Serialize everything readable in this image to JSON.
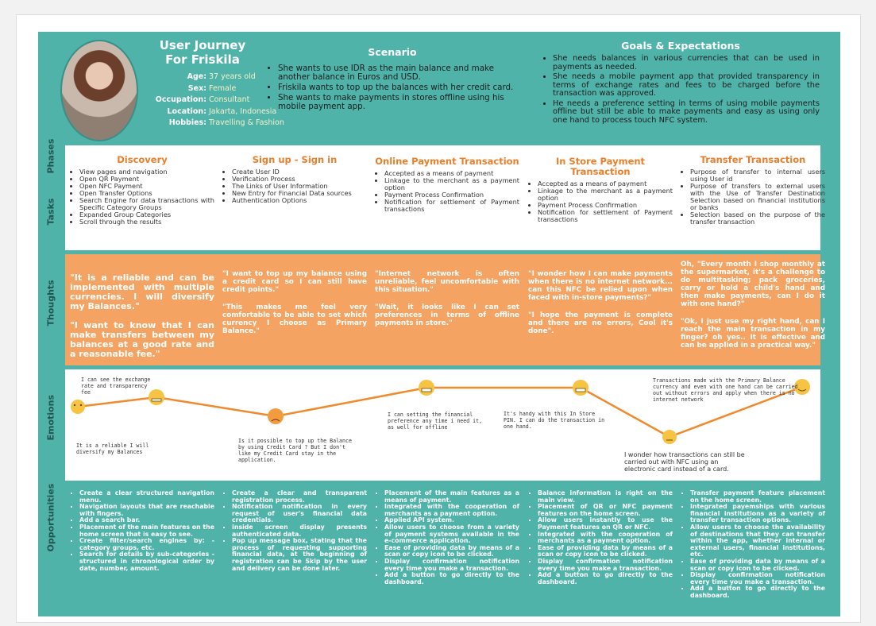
{
  "profile": {
    "title": [
      "User Journey",
      "For Friskila"
    ],
    "fields": [
      {
        "label": "Age:",
        "value": "37 years old"
      },
      {
        "label": "Sex:",
        "value": "Female"
      },
      {
        "label": "Occupation:",
        "value": "Consultant"
      },
      {
        "label": "Location:",
        "value": "Jakarta, Indonesia"
      },
      {
        "label": "Hobbies:",
        "value": "Travelling & Fashion"
      }
    ]
  },
  "scenario": {
    "title": "Scenario",
    "items": [
      "She wants to use IDR as the main balance and make another balance in Euros and USD.",
      "Friskila wants to top up the balances with her credit card.",
      "She wants to make payments in stores offline using his mobile payment app."
    ]
  },
  "goals": {
    "title": "Goals & Expectations",
    "items": [
      "She needs balances in various currencies that can be used in payments as needed.",
      "She needs a mobile payment app that provided transparency in terms of exchange rates and fees to be charged before the transaction was approved.",
      "He needs a preference setting in terms of using mobile payments offline but still be able to make payments and easy as using only one hand to process touch NFC system."
    ]
  },
  "row_labels": [
    "Phases",
    "Tasks",
    "Thoughts",
    "Emotions",
    "Opportunities"
  ],
  "stages": [
    {
      "phase": "Discovery",
      "tasks": [
        "View pages and navigation",
        "Open QR Payment",
        "Open NFC Payment",
        "Open Transfer Options",
        "Search Engine for data transactions with Specific Category Groups",
        "Expanded Group Categories",
        "Scroll through the results"
      ],
      "thoughts": [
        "\"It is a reliable and can be implemented with multiple currencies. I will diversify my Balances.\"",
        "\"I want to know that I can make transfers between my balances at a good rate and a reasonable fee.\""
      ],
      "opportunities": [
        "Create a clear structured navigation menu.",
        "Navigation layouts that are reachable with fingers.",
        "Add a search bar.",
        "Placement of the main features on the home screen that is easy to see.",
        "Create filter/search engines by: - category groups, etc.",
        "Search for details by sub-categories - structured in chronological order by date, number, amount."
      ]
    },
    {
      "phase": "Sign up - Sign in",
      "tasks": [
        "Create User ID",
        "Verification Process",
        "The Links of User Information",
        "New Entry for Financial Data sources",
        "Authentication Options"
      ],
      "thoughts": [
        "\"I want to top up my balance using a credit card so I can still have credit points.\"",
        "\"This makes me feel very comfortable to be able to set which currency I choose as Primary Balance.\""
      ],
      "opportunities": [
        "Create a clear and transparent registration process.",
        "Notification notification in every request of user's financial data credentials.",
        "Inside screen display presents authenticated data.",
        "Pop up message box, stating that the process of requesting supporting financial data, at the beginning of registration can be Skip by the user and delivery can be done later."
      ]
    },
    {
      "phase": "Online Payment Transaction",
      "tasks": [
        "Accepted as a means of payment",
        "Linkage to the merchant as a payment option",
        "Payment Process Confirmation",
        "Notification for settlement of Payment transactions"
      ],
      "thoughts": [
        "\"Internet network is often unreliable, feel uncomfortable with this situation.\"",
        "\"Wait, it looks like I can set preferences in terms of offline payments in store.\""
      ],
      "opportunities": [
        "Placement of the main features as a means of payment.",
        "Integrated with the cooperation of merchants as a payment option.",
        "Applied API system.",
        "Allow users to choose from a variety of payment systems available in the e-commerce application.",
        "Ease of providing data by means of a scan or copy icon to be clicked.",
        "Display confirmation notification every time you make a transaction.",
        "Add a button to go directly to the dashboard."
      ]
    },
    {
      "phase": "In Store Payment Transaction",
      "tasks": [
        "Accepted as a means of payment",
        "Linkage to the merchant as a payment option",
        "Payment Process Confirmation",
        "Notification for settlement of Payment transactions"
      ],
      "thoughts": [
        "\"I wonder how I can make payments when there is no internet network... can this NFC be relied upon when faced with in-store payments?\"",
        "\"I hope the payment is complete and there are no errors, Cool it's done\"."
      ],
      "opportunities": [
        "Balance information is right on the main view.",
        "Placement of QR or NFC payment features on the home screen.",
        "Allow users instantly to use the Payment features on QR or NFC.",
        "Integrated with the cooperation of merchants as a payment option.",
        "Ease of providing data by means of a scan or copy icon to be clicked.",
        "Display confirmation notification every time you make a transaction.",
        "Add a button to go directly to the dashboard."
      ]
    },
    {
      "phase": "Transfer Transaction",
      "tasks": [
        "Purpose of transfer to internal users using User id",
        "Purpose of transfers to external users with the Use of Transfer Destination Selection based on financial institutions or banks",
        "Selection based on the purpose of the transfer transaction"
      ],
      "thoughts": [
        "Oh, \"Every month I shop monthly at the supermarket, it's a challenge to do multitasking; pack groceries, carry or hold a child's hand and then make payments, can I do it with one hand?\"",
        "\"Ok, I just use my right hand, can I reach the main transaction in my finger? oh yes.. It is effective and can be applied in a practical way.\""
      ],
      "opportunities": [
        "Transfer payment feature placement on the home screen.",
        "Integrated payemships with various financial institutions as a variety of transfer transaction options.",
        "Allow users to choose the availability of destinations that they can transfer within the app, whether internal or external users, financial institutions, etc.",
        "Ease of providing data by means of a scan or copy icon to be clicked.",
        "Display confirmation notification every time you make a transaction.",
        "Add a button to go directly to the dashboard."
      ]
    }
  ],
  "emotion_notes": [
    "I can see the exchange rate and transparency fee",
    "It is a reliable I will diversify my Balances",
    "Is it possible to top up the Balance by using Credit Card ? But I don't like my Credit Card stay in the application.",
    "I can setting the financial preference any time i need it, as well for offline",
    "It's handy with this In Store PIN. I can do the transaction in one hand.",
    "I wonder how transactions can still be carried out with NFC using an electronic card instead of a card.",
    "Transactions made with the Primary Balance currency and even with one hand can be carried out without errors and apply when there is no internet network"
  ]
}
